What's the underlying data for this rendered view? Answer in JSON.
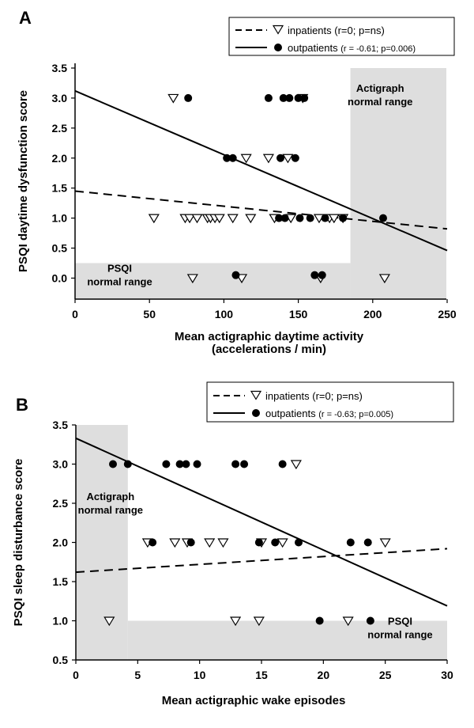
{
  "chart_data": [
    {
      "panel": "A",
      "type": "scatter",
      "xlabel": "Mean actigraphic daytime activity",
      "xlabel2": "(accelerations / min)",
      "ylabel": "PSQI daytime dysfunction score",
      "xlim": [
        0,
        250
      ],
      "ylim": [
        -0.35,
        3.5
      ],
      "xticks": [
        0,
        50,
        100,
        150,
        200,
        250
      ],
      "yticks": [
        0.0,
        0.5,
        1.0,
        1.5,
        2.0,
        2.5,
        3.0,
        3.5
      ],
      "xtick_labels": [
        "0",
        "50",
        "100",
        "150",
        "200",
        "250"
      ],
      "ytick_labels": [
        "0.0",
        "0.5",
        "1.0",
        "1.5",
        "2.0",
        "2.5",
        "3.0",
        "3.5"
      ],
      "legend": {
        "position": "top-right",
        "items": [
          {
            "name": "inpatients",
            "stats": "(r=0; p=ns)",
            "marker": "triangle",
            "line": "dashed"
          },
          {
            "name": "outpatients",
            "stats": "(r = -0.61; p=0.006)",
            "marker": "circle",
            "line": "solid"
          }
        ]
      },
      "shaded_regions": [
        {
          "label1": "Actigraph",
          "label2": "normal range",
          "x": [
            185,
            255
          ],
          "y": [
            -0.35,
            3.5
          ],
          "label_at": [
            205,
            3.0
          ]
        },
        {
          "label1": "PSQI",
          "label2": "normal range",
          "x": [
            0,
            185
          ],
          "y": [
            -0.35,
            0.25
          ],
          "label_at": [
            30,
            0.0
          ]
        }
      ],
      "series": [
        {
          "name": "inpatients",
          "marker": "triangle",
          "points": [
            [
              66,
              3
            ],
            [
              153,
              3
            ],
            [
              115,
              2
            ],
            [
              130,
              2
            ],
            [
              143,
              2
            ],
            [
              53,
              1
            ],
            [
              74,
              1
            ],
            [
              77,
              1
            ],
            [
              82,
              1
            ],
            [
              89,
              1
            ],
            [
              91,
              1
            ],
            [
              94,
              1
            ],
            [
              97,
              1
            ],
            [
              106,
              1
            ],
            [
              118,
              1
            ],
            [
              134,
              1
            ],
            [
              145,
              1
            ],
            [
              164,
              1
            ],
            [
              171,
              1
            ],
            [
              174,
              1
            ],
            [
              180,
              1
            ],
            [
              79,
              0
            ],
            [
              112,
              0
            ],
            [
              165,
              0
            ],
            [
              208,
              0
            ]
          ]
        },
        {
          "name": "outpatients",
          "marker": "circle",
          "points": [
            [
              76,
              3
            ],
            [
              130,
              3
            ],
            [
              140,
              3
            ],
            [
              144,
              3
            ],
            [
              150,
              3
            ],
            [
              154,
              3
            ],
            [
              102,
              2
            ],
            [
              106,
              2
            ],
            [
              138,
              2
            ],
            [
              148,
              2
            ],
            [
              137,
              1
            ],
            [
              141,
              1
            ],
            [
              151,
              1
            ],
            [
              158,
              1
            ],
            [
              168,
              1
            ],
            [
              180,
              1
            ],
            [
              207,
              1
            ],
            [
              108,
              0.05
            ],
            [
              161,
              0.05
            ],
            [
              166,
              0.05
            ]
          ]
        }
      ],
      "fit_lines": [
        {
          "name": "inpatients",
          "style": "dashed",
          "x": [
            0,
            250
          ],
          "y": [
            1.45,
            0.82
          ]
        },
        {
          "name": "outpatients",
          "style": "solid",
          "x": [
            0,
            250
          ],
          "y": [
            3.12,
            0.46
          ]
        }
      ]
    },
    {
      "panel": "B",
      "type": "scatter",
      "xlabel": "Mean actigraphic wake episodes",
      "xlabel2": "",
      "ylabel": "PSQI sleep disturbance score",
      "xlim": [
        0,
        30
      ],
      "ylim": [
        0.5,
        3.5
      ],
      "xticks": [
        0,
        5,
        10,
        15,
        20,
        25,
        30
      ],
      "yticks": [
        0.5,
        1.0,
        1.5,
        2.0,
        2.5,
        3.0,
        3.5
      ],
      "xtick_labels": [
        "0",
        "5",
        "10",
        "15",
        "20",
        "25",
        "30"
      ],
      "ytick_labels": [
        "0.5",
        "1.0",
        "1.5",
        "2.0",
        "2.5",
        "3.0",
        "3.5"
      ],
      "legend": {
        "position": "top-right",
        "items": [
          {
            "name": "inpatients",
            "stats": "(r=0; p=ns)",
            "marker": "triangle",
            "line": "dashed"
          },
          {
            "name": "outpatients",
            "stats": "(r = -0.63; p=0.005)",
            "marker": "circle",
            "line": "solid"
          }
        ]
      },
      "shaded_regions": [
        {
          "label1": "Actigraph",
          "label2": "normal range",
          "x": [
            0,
            4.2
          ],
          "y": [
            0.5,
            3.5
          ],
          "label_at": [
            2.8,
            2.46
          ]
        },
        {
          "label1": "PSQI",
          "label2": "normal range",
          "x": [
            4.2,
            30
          ],
          "y": [
            0.5,
            1.0
          ],
          "label_at": [
            26.2,
            0.87
          ]
        }
      ],
      "series": [
        {
          "name": "inpatients",
          "marker": "triangle",
          "points": [
            [
              17.8,
              3
            ],
            [
              5.8,
              2
            ],
            [
              8,
              2
            ],
            [
              9,
              2
            ],
            [
              10.8,
              2
            ],
            [
              11.9,
              2
            ],
            [
              15,
              2
            ],
            [
              16.7,
              2
            ],
            [
              25,
              2
            ],
            [
              2.7,
              1
            ],
            [
              12.9,
              1
            ],
            [
              14.8,
              1
            ],
            [
              22,
              1
            ]
          ]
        },
        {
          "name": "outpatients",
          "marker": "circle",
          "points": [
            [
              3,
              3
            ],
            [
              4.2,
              3
            ],
            [
              7.3,
              3
            ],
            [
              8.4,
              3
            ],
            [
              8.9,
              3
            ],
            [
              9.8,
              3
            ],
            [
              12.9,
              3
            ],
            [
              13.6,
              3
            ],
            [
              16.7,
              3
            ],
            [
              6.2,
              2
            ],
            [
              9.3,
              2
            ],
            [
              14.8,
              2
            ],
            [
              16.1,
              2
            ],
            [
              18,
              2
            ],
            [
              22.2,
              2
            ],
            [
              23.6,
              2
            ],
            [
              19.7,
              1
            ],
            [
              23.8,
              1
            ]
          ]
        }
      ],
      "fit_lines": [
        {
          "name": "inpatients",
          "style": "dashed",
          "x": [
            0,
            30
          ],
          "y": [
            1.62,
            1.92
          ]
        },
        {
          "name": "outpatients",
          "style": "solid",
          "x": [
            0,
            30
          ],
          "y": [
            3.33,
            1.19
          ]
        }
      ]
    }
  ]
}
